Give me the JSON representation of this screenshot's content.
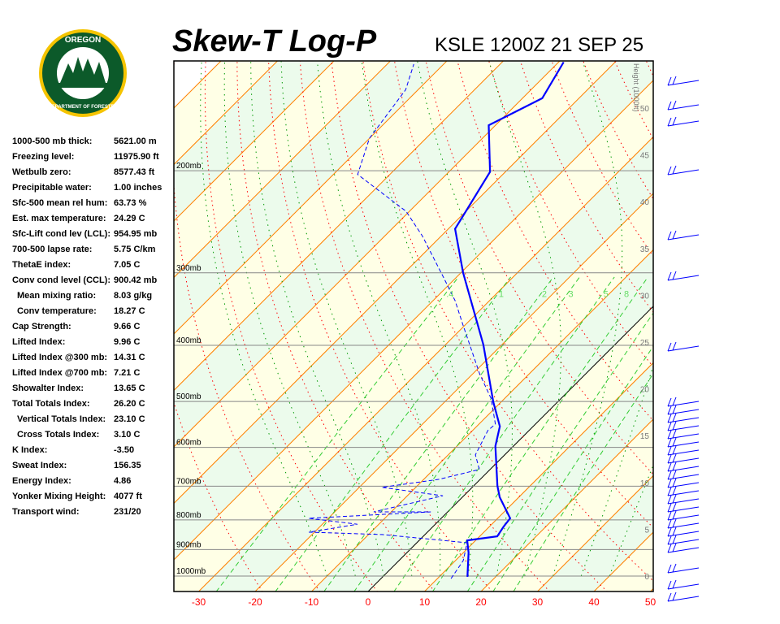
{
  "header": {
    "title": "Skew-T Log-P",
    "station": "KSLE 1200Z 21 SEP 25"
  },
  "logo": {
    "top": "OREGON",
    "bottom": "DEPARTMENT OF FORESTRY"
  },
  "indices": [
    {
      "k": "1000-500 mb thick:",
      "v": "5621.00 m"
    },
    {
      "k": "Freezing level:",
      "v": "11975.90 ft"
    },
    {
      "k": "Wetbulb zero:",
      "v": "8577.43 ft"
    },
    {
      "k": "Precipitable water:",
      "v": "1.00 inches"
    },
    {
      "k": "Sfc-500 mean rel hum:",
      "v": "63.73 %"
    },
    {
      "k": "Est. max temperature:",
      "v": "24.29 C"
    },
    {
      "k": "Sfc-Lift cond lev (LCL):",
      "v": "954.95 mb"
    },
    {
      "k": "700-500 lapse rate:",
      "v": "5.75 C/km"
    },
    {
      "k": "ThetaE index:",
      "v": "7.05 C"
    },
    {
      "k": "Conv cond level (CCL):",
      "v": "900.42 mb"
    },
    {
      "k": "Mean mixing ratio:",
      "v": "8.03 g/kg",
      "indent": true
    },
    {
      "k": "Conv temperature:",
      "v": "18.27 C",
      "indent": true
    },
    {
      "k": "Cap Strength:",
      "v": "9.66 C"
    },
    {
      "k": "Lifted Index:",
      "v": "9.96 C"
    },
    {
      "k": "Lifted Index @300 mb:",
      "v": "14.31 C"
    },
    {
      "k": "Lifted Index @700 mb:",
      "v": "7.21 C"
    },
    {
      "k": "Showalter Index:",
      "v": "13.65 C"
    },
    {
      "k": "Total Totals Index:",
      "v": "26.20 C"
    },
    {
      "k": "Vertical Totals Index:",
      "v": "23.10 C",
      "indent": true
    },
    {
      "k": "Cross Totals Index:",
      "v": "3.10 C",
      "indent": true
    },
    {
      "k": "K Index:",
      "v": "-3.50"
    },
    {
      "k": "Sweat Index:",
      "v": "156.35"
    },
    {
      "k": "Energy Index:",
      "v": "4.86"
    },
    {
      "k": "Yonker Mixing Height:",
      "v": "4077 ft"
    },
    {
      "k": "Transport wind:",
      "v": "231/20"
    }
  ],
  "chart_data": {
    "type": "line",
    "title": "Skew-T Log-P",
    "x_ticks": [
      -30,
      -20,
      -10,
      0,
      10,
      20,
      30,
      40,
      50
    ],
    "pressure_labels": [
      200,
      300,
      400,
      500,
      600,
      700,
      800,
      900,
      1000
    ],
    "pressure_suffix": "mb",
    "height_axis": {
      "label": "Height (1000ft)",
      "ticks": [
        0,
        5,
        10,
        15,
        20,
        25,
        30,
        35,
        40,
        45,
        50
      ]
    },
    "mixing_ratio_labels": [
      ".4",
      "1",
      "2",
      "3",
      "5",
      "8"
    ],
    "colors": {
      "temperature": "#0000ff",
      "dewpoint": "#0000ff",
      "isotherm": "#ff8000",
      "dry_adiabat": "#ff0000",
      "moist_adiabat": "#009900",
      "mixing_ratio": "#33cc33",
      "band_a": "#ffffe6",
      "band_b": "#ecfbec"
    },
    "series": [
      {
        "kind": "temperature",
        "points": [
          [
            1003,
            15.0
          ],
          [
            911,
            10.9
          ],
          [
            868,
            8.5
          ],
          [
            854,
            13.1
          ],
          [
            821,
            12.5
          ],
          [
            795,
            12.2
          ],
          [
            731,
            6.6
          ],
          [
            699,
            4.2
          ],
          [
            597,
            -3.2
          ],
          [
            552,
            -5.9
          ],
          [
            500,
            -11.5
          ],
          [
            399,
            -23.3
          ],
          [
            300,
            -39.6
          ],
          [
            252,
            -48.8
          ],
          [
            201,
            -52.7
          ],
          [
            167,
            -61.2
          ],
          [
            150,
            -56.5
          ],
          [
            130,
            -59.1
          ]
        ]
      },
      {
        "kind": "dewpoint",
        "points": [
          [
            1010,
            12.4
          ],
          [
            941,
            11.4
          ],
          [
            876,
            8.9
          ],
          [
            848,
            -7.6
          ],
          [
            840,
            -21
          ],
          [
            814,
            -13.8
          ],
          [
            795,
            -23.5
          ],
          [
            775,
            -3.0
          ],
          [
            775,
            -13.1
          ],
          [
            727,
            -3.7
          ],
          [
            703,
            -16
          ],
          [
            681,
            -7.3
          ],
          [
            655,
            -1.9
          ],
          [
            618,
            -5.2
          ],
          [
            561,
            -7.3
          ],
          [
            547,
            -7.1
          ],
          [
            494,
            -12.4
          ],
          [
            448,
            -18.8
          ],
          [
            369,
            -30.4
          ],
          [
            335,
            -36.1
          ],
          [
            304,
            -42.6
          ],
          [
            259,
            -53.4
          ],
          [
            235,
            -60.6
          ],
          [
            203,
            -75.7
          ],
          [
            176,
            -80
          ],
          [
            145,
            -82.2
          ],
          [
            131,
            -85.3
          ]
        ]
      }
    ]
  }
}
